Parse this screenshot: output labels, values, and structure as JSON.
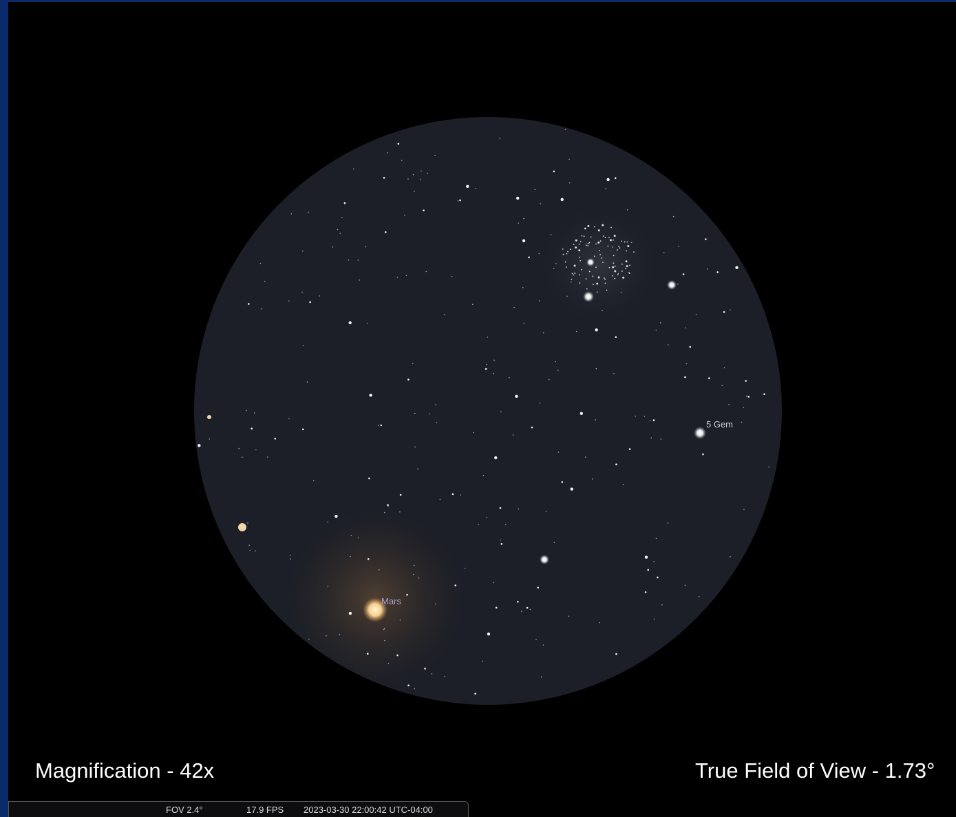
{
  "sky": {
    "labels": {
      "star": "5 Gem",
      "planet": "Mars"
    }
  },
  "captions": {
    "magnification": "Magnification - 42x",
    "field_of_view": "True Field of View - 1.73°"
  },
  "status_bar": {
    "fov": "FOV 2.4°",
    "fps": "17.9 FPS",
    "datetime": "2023-03-30 22:00:42 UTC-04:00"
  }
}
